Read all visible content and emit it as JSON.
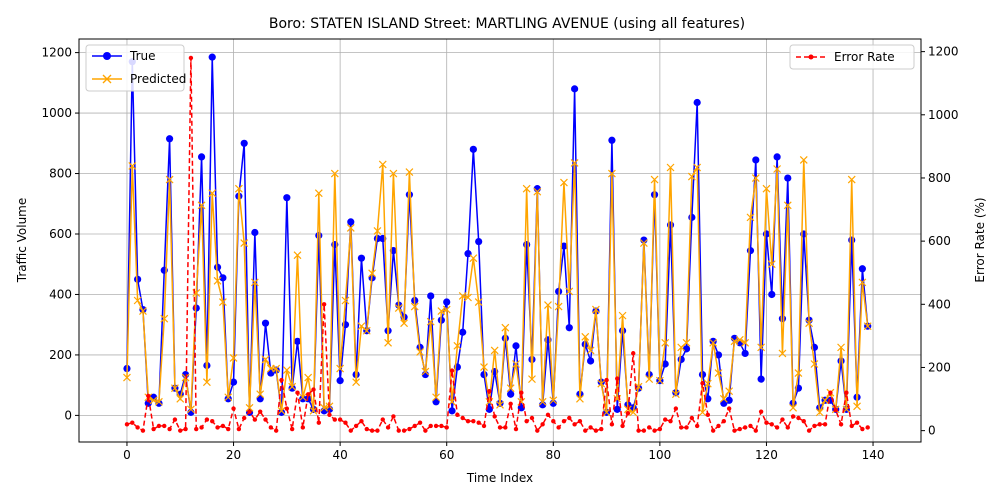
{
  "chart_data": {
    "type": "line",
    "title": "Boro: STATEN ISLAND Street: MARTLING AVENUE (using all features)",
    "xlabel": "Time Index",
    "ylabel": "Traffic Volume",
    "y2label": "Error Rate (%)",
    "xlim": [
      -9,
      149
    ],
    "ylim": [
      -88,
      1245
    ],
    "y2lim": [
      -36,
      1240
    ],
    "xticks": [
      0,
      20,
      40,
      60,
      80,
      100,
      120,
      140
    ],
    "yticks": [
      0,
      200,
      400,
      600,
      800,
      1000,
      1200
    ],
    "y2ticks": [
      0,
      200,
      400,
      600,
      800,
      1000,
      1200
    ],
    "grid": true,
    "legend_left": "upper-left",
    "legend_right": "upper-right",
    "series": [
      {
        "name": "True",
        "axis": "left",
        "color": "#0000ff",
        "marker": "circle",
        "values": [
          155,
          1170,
          450,
          350,
          40,
          60,
          40,
          480,
          915,
          90,
          70,
          135,
          10,
          355,
          855,
          165,
          1185,
          490,
          455,
          55,
          110,
          725,
          900,
          10,
          605,
          55,
          305,
          140,
          150,
          10,
          720,
          90,
          245,
          55,
          55,
          20,
          595,
          15,
          20,
          565,
          115,
          300,
          640,
          135,
          520,
          280,
          455,
          585,
          585,
          280,
          545,
          365,
          325,
          730,
          380,
          225,
          135,
          395,
          45,
          315,
          375,
          15,
          160,
          275,
          535,
          880,
          575,
          135,
          20,
          145,
          40,
          255,
          70,
          230,
          25,
          565,
          185,
          750,
          35,
          250,
          40,
          410,
          560,
          290,
          1080,
          70,
          235,
          180,
          345,
          110,
          10,
          910,
          20,
          280,
          35,
          25,
          90,
          580,
          135,
          730,
          115,
          170,
          630,
          75,
          185,
          220,
          655,
          1035,
          135,
          55,
          245,
          200,
          40,
          50,
          255,
          240,
          205,
          545,
          845,
          120,
          600,
          400,
          855,
          320,
          785,
          40,
          90,
          600,
          315,
          225,
          25,
          50,
          50,
          20,
          180,
          20,
          580,
          60,
          485,
          295
        ]
      },
      {
        "name": "Predicted",
        "axis": "left",
        "color": "#ffa500",
        "marker": "x",
        "values": [
          125,
          825,
          380,
          345,
          60,
          50,
          45,
          320,
          780,
          90,
          55,
          125,
          20,
          405,
          695,
          110,
          735,
          445,
          375,
          60,
          190,
          750,
          570,
          25,
          440,
          70,
          185,
          155,
          155,
          15,
          150,
          95,
          530,
          60,
          125,
          15,
          735,
          25,
          30,
          800,
          155,
          380,
          620,
          110,
          295,
          280,
          470,
          610,
          830,
          240,
          800,
          355,
          305,
          805,
          360,
          210,
          145,
          310,
          60,
          345,
          350,
          45,
          230,
          395,
          390,
          520,
          375,
          160,
          45,
          215,
          35,
          290,
          90,
          170,
          45,
          750,
          120,
          740,
          45,
          365,
          50,
          360,
          770,
          410,
          835,
          55,
          260,
          215,
          350,
          105,
          10,
          800,
          55,
          330,
          20,
          10,
          95,
          570,
          120,
          780,
          115,
          240,
          820,
          70,
          225,
          240,
          790,
          820,
          10,
          105,
          240,
          140,
          55,
          80,
          245,
          250,
          240,
          655,
          785,
          225,
          750,
          500,
          815,
          205,
          695,
          25,
          140,
          845,
          305,
          170,
          10,
          50,
          75,
          20,
          225,
          20,
          780,
          30,
          440,
          295
        ]
      },
      {
        "name": "Error Rate",
        "axis": "right",
        "color": "#ff0000",
        "marker": "dot",
        "values": [
          20,
          25,
          10,
          0,
          110,
          5,
          15,
          15,
          5,
          35,
          0,
          5,
          1180,
          5,
          10,
          35,
          30,
          10,
          15,
          5,
          70,
          5,
          40,
          60,
          35,
          60,
          35,
          10,
          0,
          160,
          70,
          5,
          120,
          10,
          115,
          130,
          25,
          400,
          50,
          35,
          35,
          25,
          0,
          15,
          30,
          5,
          0,
          0,
          35,
          10,
          45,
          0,
          0,
          5,
          15,
          25,
          0,
          15,
          15,
          15,
          10,
          190,
          50,
          40,
          30,
          30,
          25,
          15,
          125,
          45,
          10,
          10,
          85,
          5,
          120,
          30,
          40,
          0,
          20,
          50,
          30,
          10,
          30,
          40,
          20,
          30,
          0,
          10,
          0,
          5,
          160,
          20,
          165,
          15,
          55,
          245,
          0,
          0,
          10,
          0,
          5,
          35,
          30,
          70,
          10,
          10,
          40,
          15,
          150,
          50,
          0,
          15,
          30,
          70,
          0,
          5,
          10,
          15,
          0,
          60,
          25,
          20,
          10,
          35,
          10,
          45,
          40,
          30,
          0,
          15,
          20,
          20,
          120,
          65,
          20,
          120,
          15,
          25,
          5,
          10
        ]
      }
    ]
  }
}
